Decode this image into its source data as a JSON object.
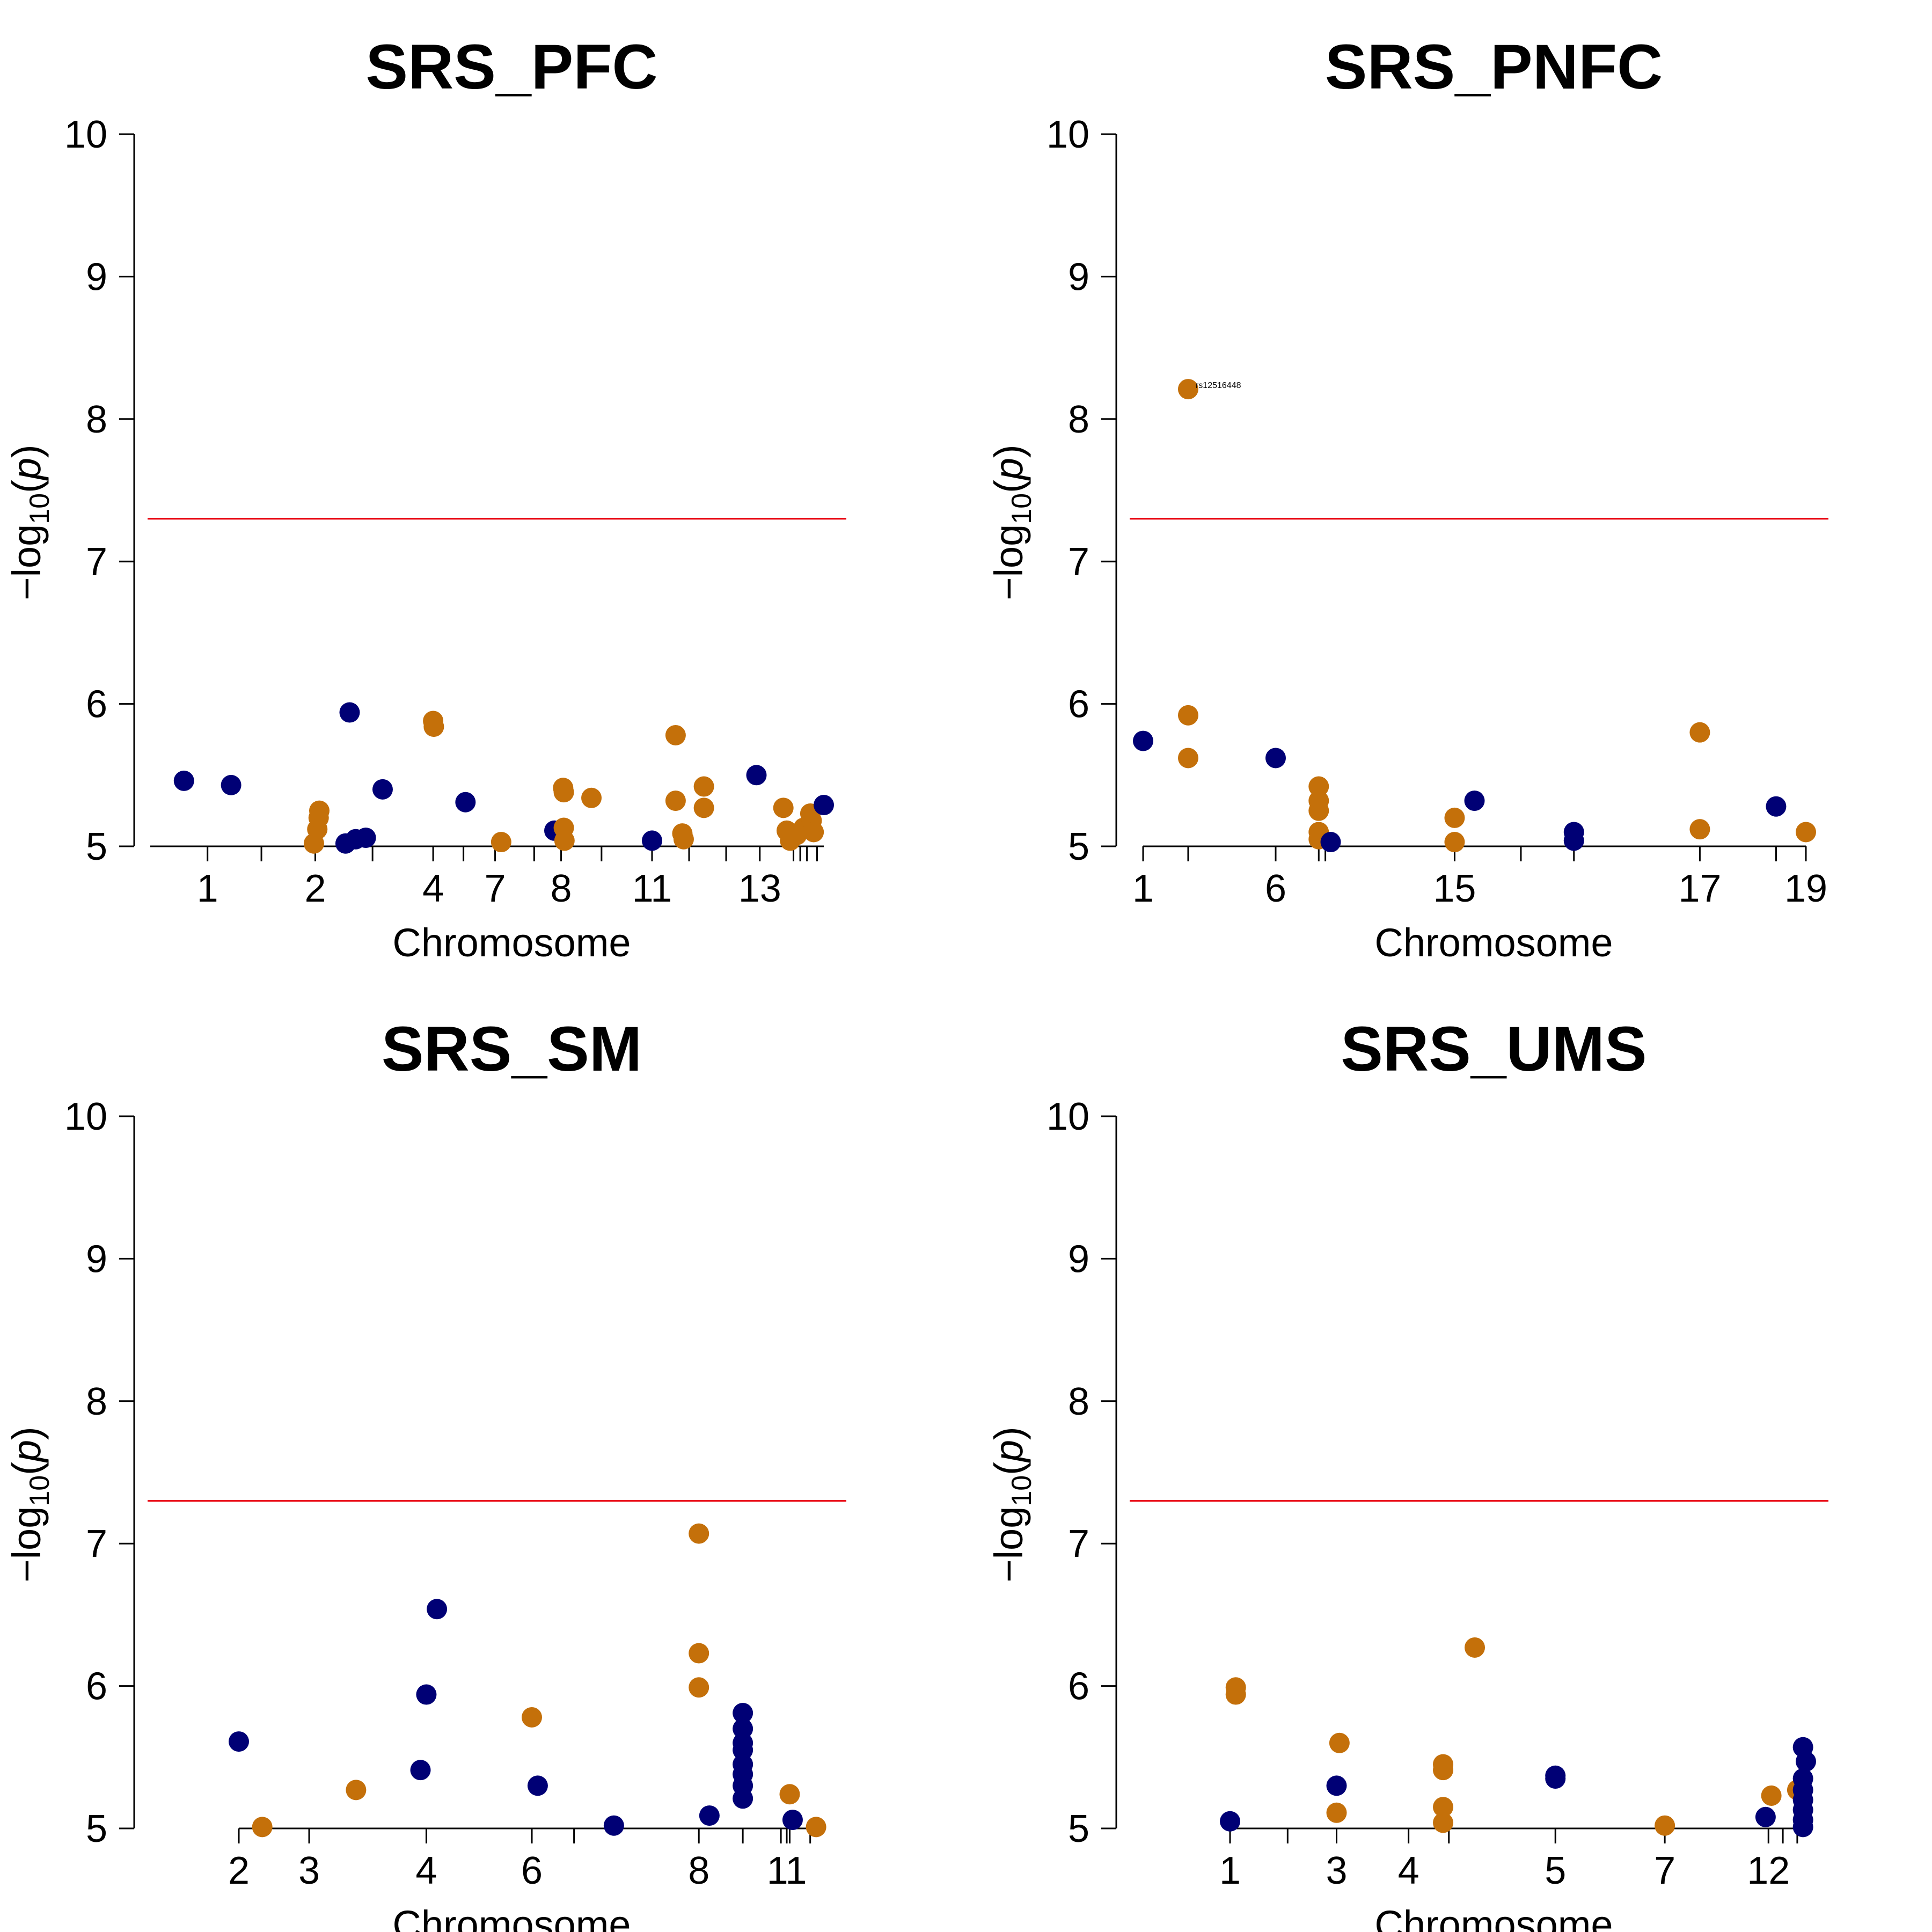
{
  "colors": {
    "odd": "#000075",
    "even": "#C4700A",
    "threshold": "#E8000B"
  },
  "chart_data": [
    {
      "type": "scatter",
      "title": "SRS_PFC",
      "xlabel": "Chromosome",
      "ylabel": "−log10(p)",
      "ylim": [
        5,
        10
      ],
      "yticks": [
        "5",
        "6",
        "7",
        "8",
        "9",
        "10"
      ],
      "threshold": 7.3,
      "xticks": [
        {
          "x": 0.085,
          "label": "1"
        },
        {
          "x": 0.245,
          "label": "2"
        },
        {
          "x": 0.42,
          "label": "4"
        },
        {
          "x": 0.512,
          "label": "7"
        },
        {
          "x": 0.61,
          "label": "8"
        },
        {
          "x": 0.745,
          "label": "11"
        },
        {
          "x": 0.905,
          "label": "13"
        }
      ],
      "minor_ticks": [
        0.165,
        0.33,
        0.465,
        0.57,
        0.67,
        0.8,
        0.855,
        0.955,
        0.965,
        0.975,
        0.99
      ],
      "points": [
        {
          "x": 0.05,
          "y": 5.46,
          "c": "odd"
        },
        {
          "x": 0.12,
          "y": 5.43,
          "c": "odd"
        },
        {
          "x": 0.243,
          "y": 5.02,
          "c": "even"
        },
        {
          "x": 0.248,
          "y": 5.12,
          "c": "even"
        },
        {
          "x": 0.25,
          "y": 5.2,
          "c": "even"
        },
        {
          "x": 0.251,
          "y": 5.25,
          "c": "even"
        },
        {
          "x": 0.29,
          "y": 5.02,
          "c": "odd"
        },
        {
          "x": 0.296,
          "y": 5.94,
          "c": "odd"
        },
        {
          "x": 0.305,
          "y": 5.05,
          "c": "odd"
        },
        {
          "x": 0.32,
          "y": 5.06,
          "c": "odd"
        },
        {
          "x": 0.345,
          "y": 5.4,
          "c": "odd"
        },
        {
          "x": 0.42,
          "y": 5.88,
          "c": "even"
        },
        {
          "x": 0.421,
          "y": 5.84,
          "c": "even"
        },
        {
          "x": 0.468,
          "y": 5.31,
          "c": "odd"
        },
        {
          "x": 0.521,
          "y": 5.03,
          "c": "even"
        },
        {
          "x": 0.6,
          "y": 5.11,
          "c": "odd"
        },
        {
          "x": 0.613,
          "y": 5.41,
          "c": "even"
        },
        {
          "x": 0.614,
          "y": 5.38,
          "c": "even"
        },
        {
          "x": 0.614,
          "y": 5.13,
          "c": "even"
        },
        {
          "x": 0.615,
          "y": 5.04,
          "c": "even"
        },
        {
          "x": 0.655,
          "y": 5.34,
          "c": "even"
        },
        {
          "x": 0.745,
          "y": 5.04,
          "c": "odd"
        },
        {
          "x": 0.78,
          "y": 5.78,
          "c": "even"
        },
        {
          "x": 0.78,
          "y": 5.32,
          "c": "even"
        },
        {
          "x": 0.79,
          "y": 5.09,
          "c": "even"
        },
        {
          "x": 0.792,
          "y": 5.05,
          "c": "even"
        },
        {
          "x": 0.822,
          "y": 5.42,
          "c": "even"
        },
        {
          "x": 0.822,
          "y": 5.27,
          "c": "even"
        },
        {
          "x": 0.9,
          "y": 5.5,
          "c": "odd"
        },
        {
          "x": 0.94,
          "y": 5.27,
          "c": "even"
        },
        {
          "x": 0.945,
          "y": 5.11,
          "c": "even"
        },
        {
          "x": 0.95,
          "y": 5.04,
          "c": "even"
        },
        {
          "x": 0.96,
          "y": 5.08,
          "c": "even"
        },
        {
          "x": 0.97,
          "y": 5.13,
          "c": "even"
        },
        {
          "x": 0.98,
          "y": 5.23,
          "c": "even"
        },
        {
          "x": 0.982,
          "y": 5.18,
          "c": "even"
        },
        {
          "x": 0.985,
          "y": 5.1,
          "c": "even"
        },
        {
          "x": 1.0,
          "y": 5.29,
          "c": "odd"
        }
      ],
      "annotations": []
    },
    {
      "type": "scatter",
      "title": "SRS_PNFC",
      "xlabel": "Chromosome",
      "ylabel": "−log10(p)",
      "ylim": [
        5,
        10
      ],
      "yticks": [
        "5",
        "6",
        "7",
        "8",
        "9",
        "10"
      ],
      "threshold": 7.3,
      "xticks": [
        {
          "x": 0.0,
          "label": "1"
        },
        {
          "x": 0.2,
          "label": "6"
        },
        {
          "x": 0.47,
          "label": "15"
        },
        {
          "x": 0.84,
          "label": "17"
        },
        {
          "x": 1.0,
          "label": "19"
        }
      ],
      "minor_ticks": [
        0.068,
        0.265,
        0.275,
        0.57,
        0.65,
        0.955
      ],
      "points": [
        {
          "x": 0.0,
          "y": 5.74,
          "c": "odd"
        },
        {
          "x": 0.068,
          "y": 8.21,
          "c": "even"
        },
        {
          "x": 0.068,
          "y": 5.92,
          "c": "even"
        },
        {
          "x": 0.068,
          "y": 5.62,
          "c": "even"
        },
        {
          "x": 0.2,
          "y": 5.62,
          "c": "odd"
        },
        {
          "x": 0.265,
          "y": 5.42,
          "c": "even"
        },
        {
          "x": 0.265,
          "y": 5.32,
          "c": "even"
        },
        {
          "x": 0.265,
          "y": 5.25,
          "c": "even"
        },
        {
          "x": 0.265,
          "y": 5.1,
          "c": "even"
        },
        {
          "x": 0.265,
          "y": 5.05,
          "c": "even"
        },
        {
          "x": 0.283,
          "y": 5.03,
          "c": "odd"
        },
        {
          "x": 0.47,
          "y": 5.2,
          "c": "even"
        },
        {
          "x": 0.47,
          "y": 5.03,
          "c": "even"
        },
        {
          "x": 0.5,
          "y": 5.32,
          "c": "odd"
        },
        {
          "x": 0.65,
          "y": 5.1,
          "c": "odd"
        },
        {
          "x": 0.65,
          "y": 5.04,
          "c": "odd"
        },
        {
          "x": 0.84,
          "y": 5.8,
          "c": "even"
        },
        {
          "x": 0.84,
          "y": 5.12,
          "c": "even"
        },
        {
          "x": 0.955,
          "y": 5.28,
          "c": "odd"
        },
        {
          "x": 1.0,
          "y": 5.1,
          "c": "even"
        }
      ],
      "annotations": [
        {
          "x": 0.068,
          "y": 8.21,
          "text": "rs12516448"
        }
      ]
    },
    {
      "type": "scatter",
      "title": "SRS_SM",
      "xlabel": "Chromosome",
      "ylabel": "−log10(p)",
      "ylim": [
        5,
        10
      ],
      "yticks": [
        "5",
        "6",
        "7",
        "8",
        "9",
        "10"
      ],
      "threshold": 7.3,
      "xticks": [
        {
          "x": 0.0,
          "label": "2"
        },
        {
          "x": 0.12,
          "label": "3"
        },
        {
          "x": 0.32,
          "label": "4"
        },
        {
          "x": 0.5,
          "label": "6"
        },
        {
          "x": 0.785,
          "label": "8"
        },
        {
          "x": 0.935,
          "label": "11"
        }
      ],
      "minor_ticks": [
        0.572,
        0.86,
        0.925,
        0.94,
        0.975
      ],
      "points": [
        {
          "x": 0.0,
          "y": 5.61,
          "c": "odd"
        },
        {
          "x": 0.04,
          "y": 5.01,
          "c": "even"
        },
        {
          "x": 0.2,
          "y": 5.27,
          "c": "even"
        },
        {
          "x": 0.31,
          "y": 5.41,
          "c": "odd"
        },
        {
          "x": 0.32,
          "y": 5.94,
          "c": "odd"
        },
        {
          "x": 0.338,
          "y": 6.54,
          "c": "odd"
        },
        {
          "x": 0.5,
          "y": 5.78,
          "c": "even"
        },
        {
          "x": 0.51,
          "y": 5.3,
          "c": "odd"
        },
        {
          "x": 0.64,
          "y": 5.02,
          "c": "odd"
        },
        {
          "x": 0.785,
          "y": 7.07,
          "c": "even"
        },
        {
          "x": 0.785,
          "y": 6.23,
          "c": "even"
        },
        {
          "x": 0.785,
          "y": 5.99,
          "c": "even"
        },
        {
          "x": 0.803,
          "y": 5.09,
          "c": "odd"
        },
        {
          "x": 0.86,
          "y": 5.81,
          "c": "odd"
        },
        {
          "x": 0.86,
          "y": 5.7,
          "c": "odd"
        },
        {
          "x": 0.86,
          "y": 5.6,
          "c": "odd"
        },
        {
          "x": 0.86,
          "y": 5.55,
          "c": "odd"
        },
        {
          "x": 0.86,
          "y": 5.45,
          "c": "odd"
        },
        {
          "x": 0.86,
          "y": 5.38,
          "c": "odd"
        },
        {
          "x": 0.86,
          "y": 5.3,
          "c": "odd"
        },
        {
          "x": 0.86,
          "y": 5.21,
          "c": "odd"
        },
        {
          "x": 0.94,
          "y": 5.24,
          "c": "even"
        },
        {
          "x": 0.945,
          "y": 5.06,
          "c": "odd"
        },
        {
          "x": 0.985,
          "y": 5.01,
          "c": "even"
        }
      ],
      "annotations": []
    },
    {
      "type": "scatter",
      "title": "SRS_UMS",
      "xlabel": "Chromosome",
      "ylabel": "−log10(p)",
      "ylim": [
        5,
        10
      ],
      "yticks": [
        "5",
        "6",
        "7",
        "8",
        "9",
        "10"
      ],
      "threshold": 7.3,
      "xticks": [
        {
          "x": 0.0,
          "label": "1"
        },
        {
          "x": 0.185,
          "label": "3"
        },
        {
          "x": 0.31,
          "label": "4"
        },
        {
          "x": 0.565,
          "label": "5"
        },
        {
          "x": 0.755,
          "label": "7"
        },
        {
          "x": 0.935,
          "label": "12"
        }
      ],
      "minor_ticks": [
        0.1,
        0.38,
        0.96,
        0.985
      ],
      "points": [
        {
          "x": 0.0,
          "y": 5.05,
          "c": "odd"
        },
        {
          "x": 0.01,
          "y": 5.99,
          "c": "even"
        },
        {
          "x": 0.01,
          "y": 5.94,
          "c": "even"
        },
        {
          "x": 0.185,
          "y": 5.3,
          "c": "odd"
        },
        {
          "x": 0.19,
          "y": 5.6,
          "c": "even"
        },
        {
          "x": 0.185,
          "y": 5.11,
          "c": "even"
        },
        {
          "x": 0.37,
          "y": 5.45,
          "c": "even"
        },
        {
          "x": 0.37,
          "y": 5.41,
          "c": "even"
        },
        {
          "x": 0.37,
          "y": 5.15,
          "c": "even"
        },
        {
          "x": 0.37,
          "y": 5.04,
          "c": "even"
        },
        {
          "x": 0.425,
          "y": 6.27,
          "c": "even"
        },
        {
          "x": 0.565,
          "y": 5.37,
          "c": "odd"
        },
        {
          "x": 0.565,
          "y": 5.35,
          "c": "odd"
        },
        {
          "x": 0.755,
          "y": 5.02,
          "c": "even"
        },
        {
          "x": 0.93,
          "y": 5.08,
          "c": "odd"
        },
        {
          "x": 0.94,
          "y": 5.23,
          "c": "even"
        },
        {
          "x": 0.985,
          "y": 5.27,
          "c": "even"
        },
        {
          "x": 0.995,
          "y": 5.57,
          "c": "odd"
        },
        {
          "x": 1.0,
          "y": 5.47,
          "c": "odd"
        },
        {
          "x": 0.995,
          "y": 5.35,
          "c": "odd"
        },
        {
          "x": 0.995,
          "y": 5.27,
          "c": "odd"
        },
        {
          "x": 0.995,
          "y": 5.2,
          "c": "odd"
        },
        {
          "x": 0.995,
          "y": 5.13,
          "c": "odd"
        },
        {
          "x": 0.995,
          "y": 5.06,
          "c": "odd"
        },
        {
          "x": 0.995,
          "y": 5.01,
          "c": "odd"
        }
      ],
      "annotations": []
    }
  ]
}
